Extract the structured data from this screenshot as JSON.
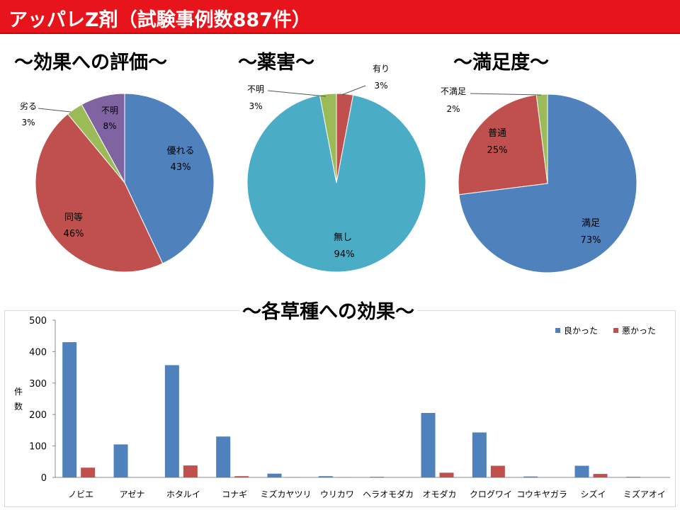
{
  "title": "アッパレZ剤（試験事例数887件）",
  "headings": {
    "effect": "～効果への評価～",
    "phyto": "～薬害～",
    "satisfaction": "～満足度～",
    "weeds": "～各草種への効果～"
  },
  "colors": {
    "title_bar": "#e8141c",
    "blue": "#4f81bd",
    "red": "#c0504d",
    "green": "#9bbb59",
    "purple": "#8064a2",
    "teal": "#4bacc6"
  },
  "chart_data": [
    {
      "type": "pie",
      "slices": [
        {
          "label": "優れる",
          "pct": "43%",
          "value": 43,
          "color": "#4f81bd"
        },
        {
          "label": "同等",
          "pct": "46%",
          "value": 46,
          "color": "#c0504d"
        },
        {
          "label": "劣る",
          "pct": "3%",
          "value": 3,
          "color": "#9bbb59"
        },
        {
          "label": "不明",
          "pct": "8%",
          "value": 8,
          "color": "#8064a2"
        }
      ]
    },
    {
      "type": "pie",
      "slices": [
        {
          "label": "有り",
          "pct": "3%",
          "value": 3,
          "color": "#c0504d"
        },
        {
          "label": "無し",
          "pct": "94%",
          "value": 94,
          "color": "#4bacc6"
        },
        {
          "label": "不明",
          "pct": "3%",
          "value": 3,
          "color": "#9bbb59"
        }
      ]
    },
    {
      "type": "pie",
      "slices": [
        {
          "label": "満足",
          "pct": "73%",
          "value": 73,
          "color": "#4f81bd"
        },
        {
          "label": "普通",
          "pct": "25%",
          "value": 25,
          "color": "#c0504d"
        },
        {
          "label": "不満足",
          "pct": "2%",
          "value": 2,
          "color": "#9bbb59"
        }
      ]
    },
    {
      "type": "bar",
      "categories": [
        "ノビエ",
        "アゼナ",
        "ホタルイ",
        "コナギ",
        "ミズカヤツリ",
        "ウリカワ",
        "ヘラオモダカ",
        "オモダカ",
        "クログワイ",
        "コウキヤガラ",
        "シズイ",
        "ミズアオイ"
      ],
      "series": [
        {
          "name": "良かった",
          "color": "#4f81bd",
          "values": [
            430,
            105,
            357,
            130,
            12,
            4,
            2,
            205,
            143,
            3,
            37,
            2
          ]
        },
        {
          "name": "悪かった",
          "color": "#c0504d",
          "values": [
            31,
            0,
            38,
            4,
            1,
            1,
            0,
            15,
            37,
            0,
            11,
            0
          ]
        }
      ],
      "ylabel": "件数",
      "ylim": [
        0,
        500
      ],
      "yticks": [
        "0",
        "100",
        "200",
        "300",
        "400",
        "500"
      ],
      "legend": "top-right"
    }
  ]
}
